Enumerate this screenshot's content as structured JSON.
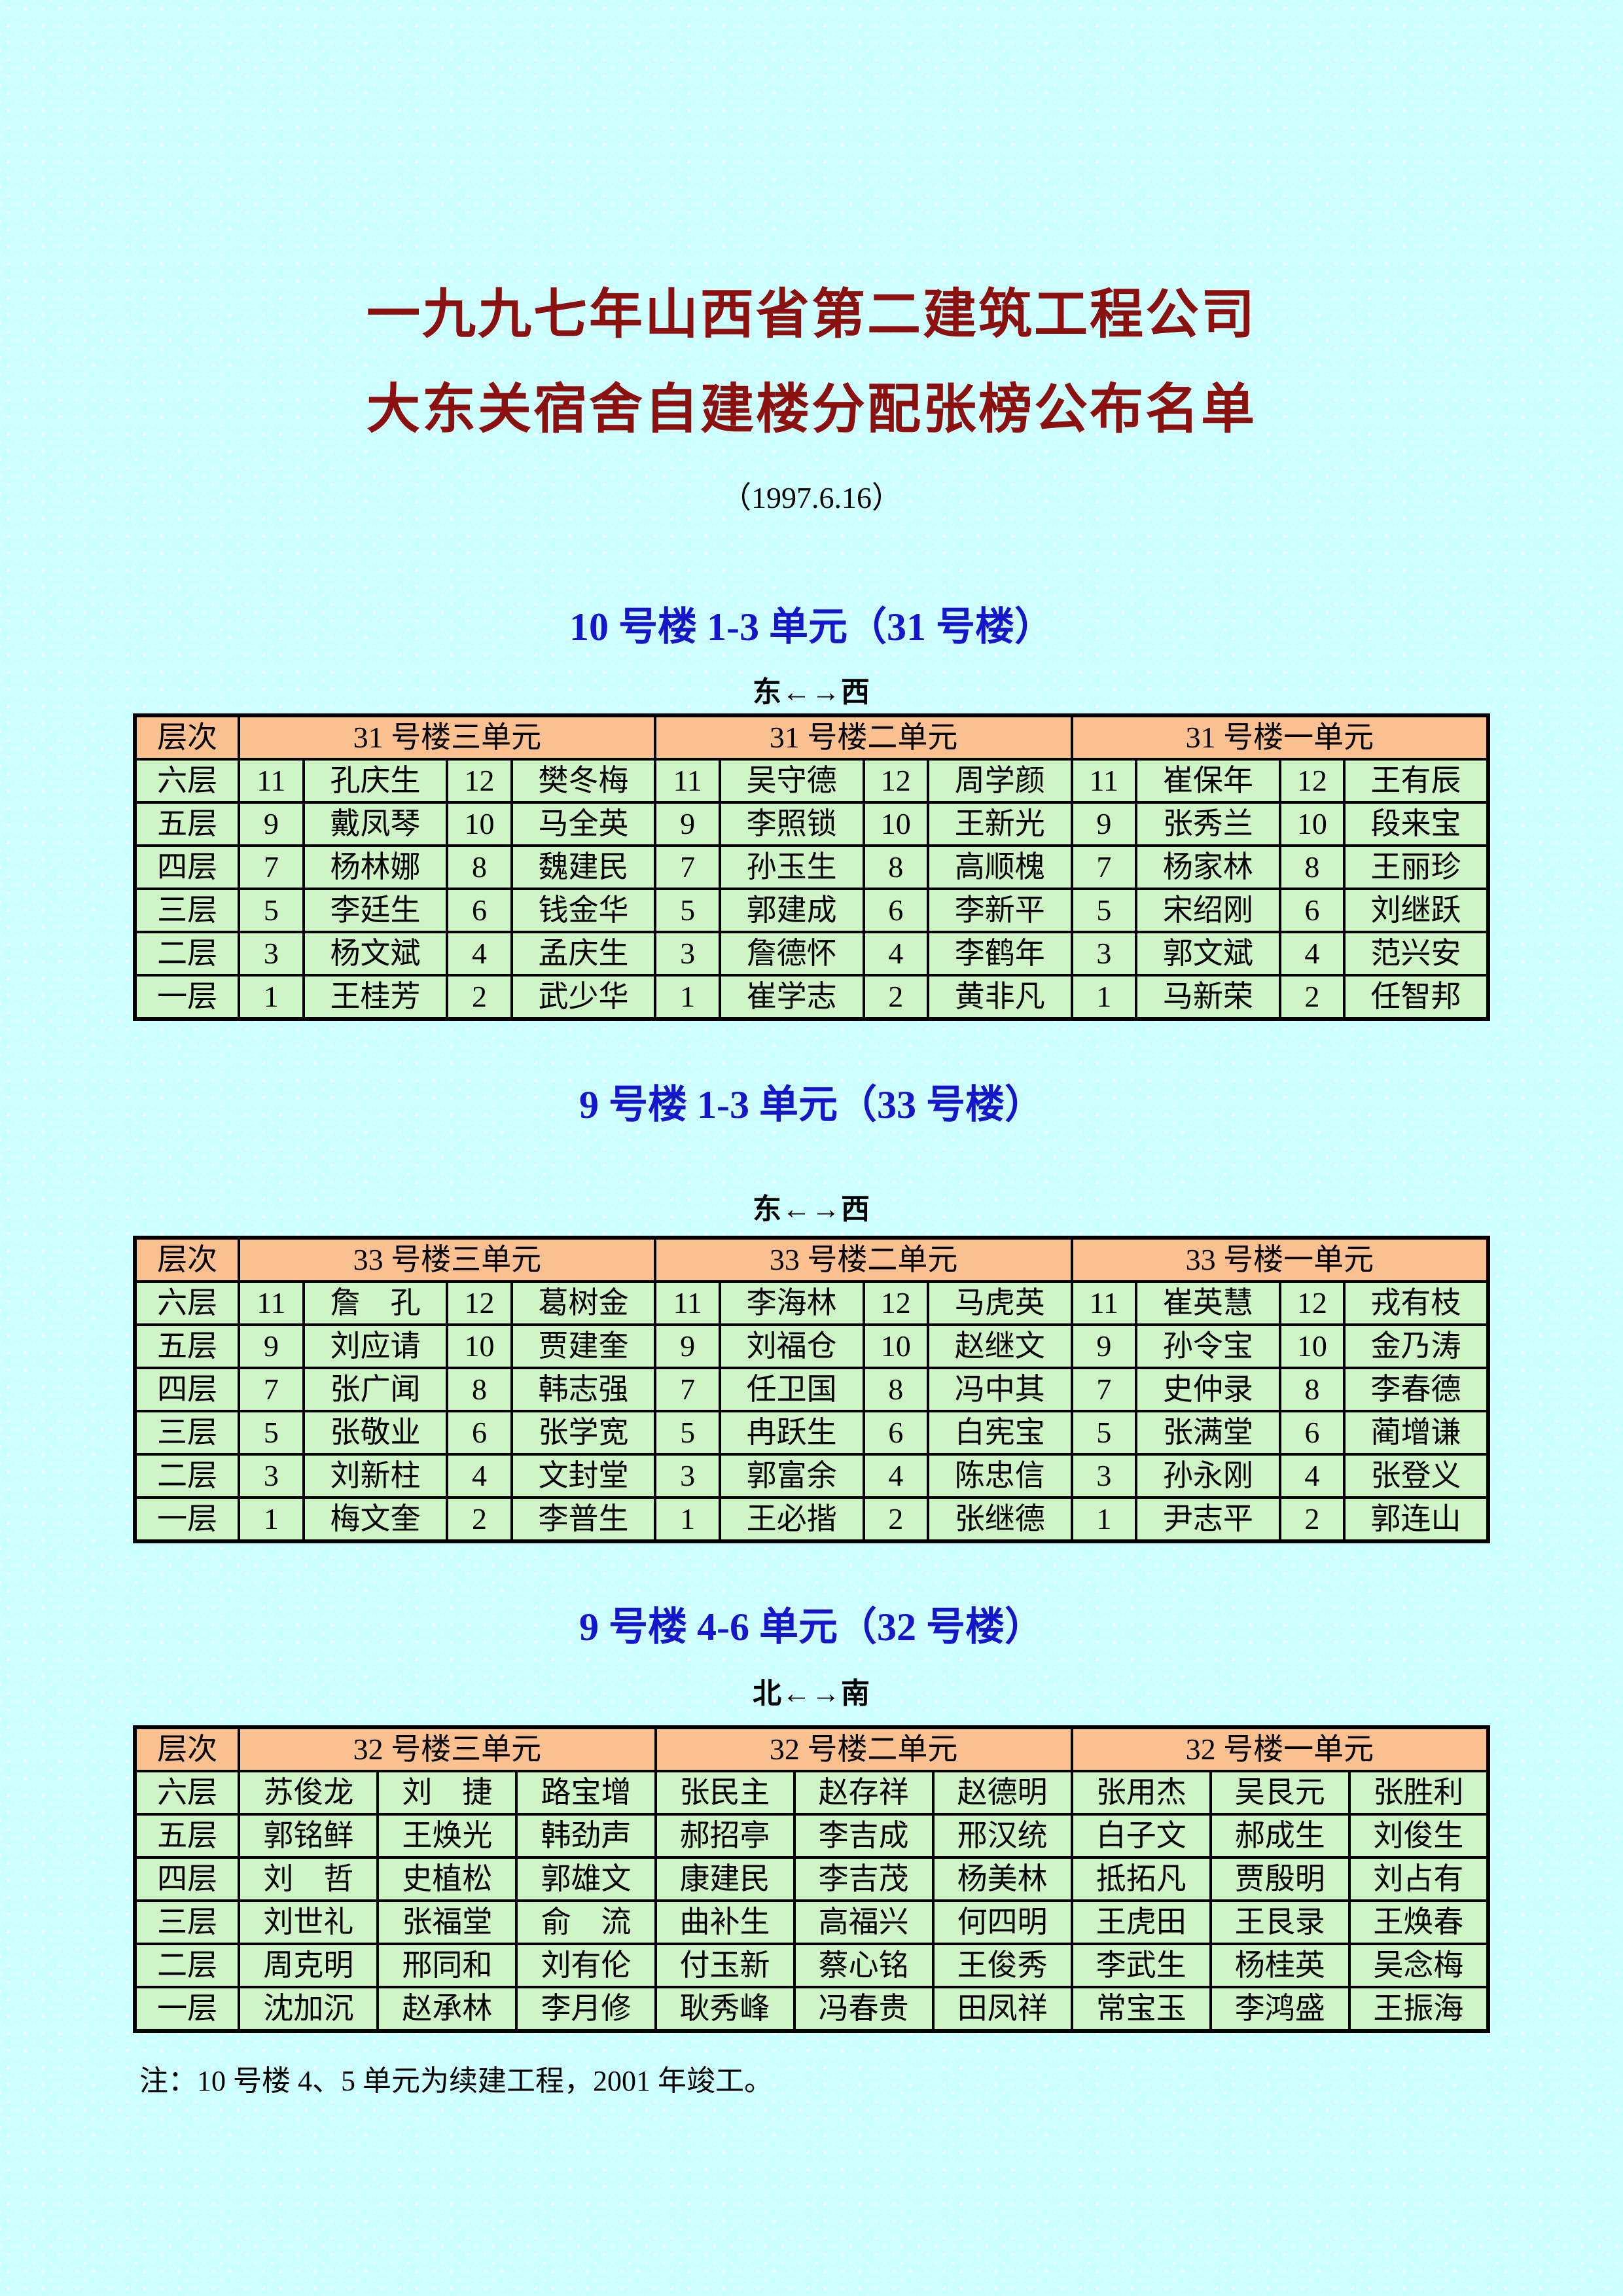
{
  "document": {
    "title_line1": "一九九七年山西省第二建筑工程公司",
    "title_line2": "大东关宿舍自建楼分配张榜公布名单",
    "date": "（1997.6.16）",
    "footnote": "注：10 号楼 4、5 单元为续建工程，2001 年竣工。"
  },
  "colors": {
    "page_bg": "#CCFFFF",
    "title": "#8B1111",
    "section_title": "#1515CC",
    "table_header_bg": "#FAC08F",
    "table_row_bg": "#CFF5C6",
    "border": "#000000"
  },
  "sections": [
    {
      "title": "10 号楼 1-3 单元（31 号楼）",
      "direction": "东←→西",
      "floor_header": "层次",
      "unit_headers": [
        "31 号楼三单元",
        "31 号楼二单元",
        "31 号楼一单元"
      ],
      "layout": "numbered",
      "rows": [
        {
          "floor": "六层",
          "cells": [
            "11",
            "孔庆生",
            "12",
            "樊冬梅",
            "11",
            "吴守德",
            "12",
            "周学颜",
            "11",
            "崔保年",
            "12",
            "王有辰"
          ]
        },
        {
          "floor": "五层",
          "cells": [
            "9",
            "戴凤琴",
            "10",
            "马全英",
            "9",
            "李照锁",
            "10",
            "王新光",
            "9",
            "张秀兰",
            "10",
            "段来宝"
          ]
        },
        {
          "floor": "四层",
          "cells": [
            "7",
            "杨林娜",
            "8",
            "魏建民",
            "7",
            "孙玉生",
            "8",
            "高顺槐",
            "7",
            "杨家林",
            "8",
            "王丽珍"
          ]
        },
        {
          "floor": "三层",
          "cells": [
            "5",
            "李廷生",
            "6",
            "钱金华",
            "5",
            "郭建成",
            "6",
            "李新平",
            "5",
            "宋绍刚",
            "6",
            "刘继跃"
          ]
        },
        {
          "floor": "二层",
          "cells": [
            "3",
            "杨文斌",
            "4",
            "孟庆生",
            "3",
            "詹德怀",
            "4",
            "李鹤年",
            "3",
            "郭文斌",
            "4",
            "范兴安"
          ]
        },
        {
          "floor": "一层",
          "cells": [
            "1",
            "王桂芳",
            "2",
            "武少华",
            "1",
            "崔学志",
            "2",
            "黄非凡",
            "1",
            "马新荣",
            "2",
            "任智邦"
          ]
        }
      ]
    },
    {
      "title": "9 号楼 1-3 单元（33 号楼）",
      "direction": "东←→西",
      "floor_header": "层次",
      "unit_headers": [
        "33 号楼三单元",
        "33 号楼二单元",
        "33 号楼一单元"
      ],
      "layout": "numbered",
      "rows": [
        {
          "floor": "六层",
          "cells": [
            "11",
            "詹　孔",
            "12",
            "葛树金",
            "11",
            "李海林",
            "12",
            "马虎英",
            "11",
            "崔英慧",
            "12",
            "戎有枝"
          ]
        },
        {
          "floor": "五层",
          "cells": [
            "9",
            "刘应请",
            "10",
            "贾建奎",
            "9",
            "刘福仓",
            "10",
            "赵继文",
            "9",
            "孙令宝",
            "10",
            "金乃涛"
          ]
        },
        {
          "floor": "四层",
          "cells": [
            "7",
            "张广闻",
            "8",
            "韩志强",
            "7",
            "任卫国",
            "8",
            "冯中其",
            "7",
            "史仲录",
            "8",
            "李春德"
          ]
        },
        {
          "floor": "三层",
          "cells": [
            "5",
            "张敬业",
            "6",
            "张学宽",
            "5",
            "冉跃生",
            "6",
            "白宪宝",
            "5",
            "张满堂",
            "6",
            "蔺增谦"
          ]
        },
        {
          "floor": "二层",
          "cells": [
            "3",
            "刘新柱",
            "4",
            "文封堂",
            "3",
            "郭富余",
            "4",
            "陈忠信",
            "3",
            "孙永刚",
            "4",
            "张登义"
          ]
        },
        {
          "floor": "一层",
          "cells": [
            "1",
            "梅文奎",
            "2",
            "李普生",
            "1",
            "王必揩",
            "2",
            "张继德",
            "1",
            "尹志平",
            "2",
            "郭连山"
          ]
        }
      ]
    },
    {
      "title": "9 号楼 4-6 单元（32 号楼）",
      "direction": "北←→南",
      "floor_header": "层次",
      "unit_headers": [
        "32 号楼三单元",
        "32 号楼二单元",
        "32 号楼一单元"
      ],
      "layout": "plain",
      "rows": [
        {
          "floor": "六层",
          "cells": [
            "苏俊龙",
            "刘　捷",
            "路宝增",
            "张民主",
            "赵存祥",
            "赵德明",
            "张用杰",
            "吴艮元",
            "张胜利"
          ]
        },
        {
          "floor": "五层",
          "cells": [
            "郭铭鲜",
            "王焕光",
            "韩劲声",
            "郝招亭",
            "李吉成",
            "邢汉统",
            "白子文",
            "郝成生",
            "刘俊生"
          ]
        },
        {
          "floor": "四层",
          "cells": [
            "刘　哲",
            "史植松",
            "郭雄文",
            "康建民",
            "李吉茂",
            "杨美林",
            "抵拓凡",
            "贾殷明",
            "刘占有"
          ]
        },
        {
          "floor": "三层",
          "cells": [
            "刘世礼",
            "张福堂",
            "俞　流",
            "曲补生",
            "高福兴",
            "何四明",
            "王虎田",
            "王艮录",
            "王焕春"
          ]
        },
        {
          "floor": "二层",
          "cells": [
            "周克明",
            "邢同和",
            "刘有伦",
            "付玉新",
            "蔡心铭",
            "王俊秀",
            "李武生",
            "杨桂英",
            "吴念梅"
          ]
        },
        {
          "floor": "一层",
          "cells": [
            "沈加沉",
            "赵承林",
            "李月修",
            "耿秀峰",
            "冯春贵",
            "田凤祥",
            "常宝玉",
            "李鸿盛",
            "王振海"
          ]
        }
      ]
    }
  ]
}
